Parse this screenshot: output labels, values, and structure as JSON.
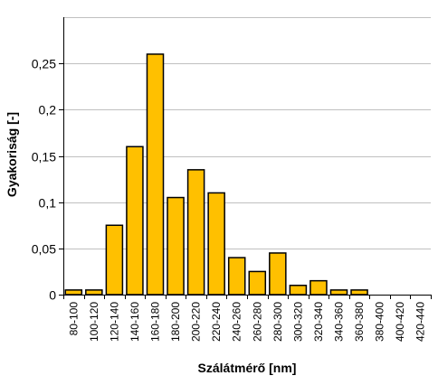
{
  "chart_data": {
    "type": "bar",
    "xlabel": "Szálátmérő [nm]",
    "ylabel": "Gyakoriság [-]",
    "ylim": [
      0,
      0.3
    ],
    "yticks": [
      "0",
      "0,05",
      "0,1",
      "0,15",
      "0,2",
      "0,25"
    ],
    "ytick_values": [
      0,
      0.05,
      0.1,
      0.15,
      0.2,
      0.25
    ],
    "grid": "horizontal",
    "categories": [
      "80-100",
      "100-120",
      "120-140",
      "140-160",
      "160-180",
      "180-200",
      "200-220",
      "220-240",
      "240-260",
      "260-280",
      "280-300",
      "300-320",
      "320-340",
      "340-360",
      "360-380",
      "380-400",
      "400-420",
      "420-440"
    ],
    "values": [
      0.005,
      0.005,
      0.075,
      0.16,
      0.26,
      0.105,
      0.135,
      0.11,
      0.04,
      0.025,
      0.045,
      0.01,
      0.015,
      0.005,
      0.005,
      0,
      0,
      0
    ],
    "bar_color": "#FFC000",
    "bar_edge_color": "#000000",
    "grid_color": "#C0C0C0"
  }
}
